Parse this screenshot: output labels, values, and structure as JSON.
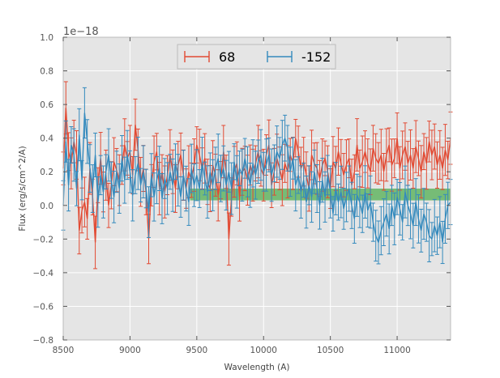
{
  "chart_data": {
    "type": "line",
    "xlabel": "Wavelength (A)",
    "ylabel": "Flux (erg/s/cm^2/A)",
    "offset_text": "1e−18",
    "xlim": [
      8500,
      11400
    ],
    "ylim": [
      -0.8,
      1.0
    ],
    "y_scale_factor": "1e-18",
    "x_ticks": [
      8500,
      9000,
      9500,
      10000,
      10500,
      11000
    ],
    "x_tick_labels": [
      "8500",
      "9000",
      "9500",
      "10000",
      "10500",
      "11000"
    ],
    "y_ticks": [
      -0.8,
      -0.6,
      -0.4,
      -0.2,
      0.0,
      0.2,
      0.4,
      0.6,
      0.8,
      1.0
    ],
    "y_tick_labels": [
      "−0.8",
      "−0.6",
      "−0.4",
      "−0.2",
      "0.0",
      "0.2",
      "0.4",
      "0.6",
      "0.8",
      "1.0"
    ],
    "grid": true,
    "background": "#e5e5e5",
    "legend_placement": "top-center",
    "band": {
      "x_start": 9450,
      "x_end": 11400,
      "y_low": 0.03,
      "y_high": 0.1,
      "color": "#2ca02c"
    },
    "series": [
      {
        "name": "68",
        "color": "#e24a33",
        "step": 20,
        "x_start": 8500,
        "y": [
          0.22,
          0.58,
          0.32,
          0.25,
          0.38,
          0.3,
          -0.15,
          -0.03,
          0.02,
          -0.08,
          0.22,
          0.05,
          -0.22,
          0.12,
          0.28,
          0.08,
          0.18,
          0.0,
          0.12,
          0.26,
          0.21,
          0.15,
          0.24,
          0.36,
          0.28,
          0.32,
          0.18,
          0.48,
          0.33,
          0.14,
          0.22,
          0.08,
          -0.2,
          0.12,
          0.26,
          0.32,
          0.1,
          0.2,
          0.08,
          0.18,
          0.3,
          0.2,
          0.1,
          0.24,
          0.3,
          0.18,
          0.1,
          0.2,
          0.15,
          0.24,
          0.36,
          0.3,
          0.22,
          0.28,
          0.14,
          0.1,
          0.24,
          0.18,
          0.06,
          0.15,
          0.32,
          0.2,
          -0.2,
          0.05,
          0.2,
          0.25,
          0.05,
          0.2,
          0.22,
          0.15,
          0.24,
          0.18,
          0.25,
          0.32,
          0.22,
          0.18,
          0.3,
          0.36,
          0.12,
          0.2,
          0.28,
          0.22,
          0.15,
          0.25,
          0.2,
          0.3,
          0.25,
          0.4,
          0.32,
          0.22,
          0.26,
          0.18,
          0.1,
          0.3,
          0.25,
          0.22,
          0.16,
          0.24,
          0.28,
          0.2,
          0.1,
          0.26,
          0.22,
          0.32,
          0.25,
          0.18,
          0.24,
          0.28,
          0.12,
          0.2,
          0.36,
          0.22,
          0.26,
          0.32,
          0.25,
          0.2,
          0.34,
          0.28,
          0.25,
          0.3,
          0.2,
          0.3,
          0.36,
          0.24,
          0.28,
          0.4,
          0.22,
          0.3,
          0.35,
          0.25,
          0.3,
          0.22,
          0.35,
          0.28,
          0.2,
          0.32,
          0.25,
          0.38,
          0.3,
          0.35,
          0.24,
          0.3,
          0.22,
          0.33,
          0.27,
          0.4
        ],
        "err": 0.13
      },
      {
        "name": "-152",
        "color": "#348abd",
        "step": 20,
        "x_start": 8500,
        "y": [
          0.0,
          0.38,
          0.12,
          0.36,
          0.3,
          0.1,
          0.42,
          0.15,
          0.55,
          0.38,
          0.22,
          0.1,
          0.3,
          0.02,
          0.18,
          0.08,
          0.2,
          0.3,
          0.15,
          0.05,
          0.2,
          0.1,
          0.28,
          0.15,
          0.3,
          0.2,
          0.06,
          0.18,
          0.25,
          0.12,
          0.2,
          0.1,
          -0.04,
          0.18,
          0.05,
          0.15,
          0.22,
          0.04,
          0.16,
          0.1,
          0.2,
          0.12,
          0.26,
          0.15,
          0.05,
          0.18,
          0.1,
          0.02,
          0.22,
          0.12,
          0.18,
          0.1,
          0.25,
          0.16,
          0.08,
          0.2,
          0.12,
          0.22,
          0.28,
          0.16,
          0.22,
          0.12,
          0.2,
          0.1,
          0.26,
          0.14,
          0.22,
          0.18,
          0.28,
          0.2,
          0.12,
          0.25,
          0.18,
          0.26,
          0.3,
          0.2,
          0.24,
          0.3,
          0.18,
          0.25,
          0.32,
          0.28,
          0.36,
          0.4,
          0.34,
          0.2,
          0.28,
          0.12,
          0.18,
          0.08,
          0.15,
          0.02,
          0.12,
          0.05,
          0.2,
          0.1,
          0.0,
          0.15,
          0.05,
          0.18,
          0.08,
          -0.05,
          0.1,
          0.02,
          0.08,
          -0.02,
          0.05,
          0.1,
          0.0,
          -0.08,
          0.06,
          0.02,
          -0.05,
          0.08,
          -0.03,
          0.02,
          -0.1,
          -0.18,
          -0.22,
          -0.15,
          -0.1,
          -0.05,
          -0.14,
          0.0,
          -0.08,
          0.05,
          -0.02,
          -0.1,
          0.08,
          0.0,
          -0.05,
          -0.12,
          0.02,
          -0.08,
          -0.15,
          -0.05,
          -0.1,
          -0.18,
          -0.2,
          -0.12,
          -0.18,
          -0.1,
          -0.22,
          -0.08,
          0.0,
          0.02
        ],
        "err": 0.13
      }
    ]
  }
}
